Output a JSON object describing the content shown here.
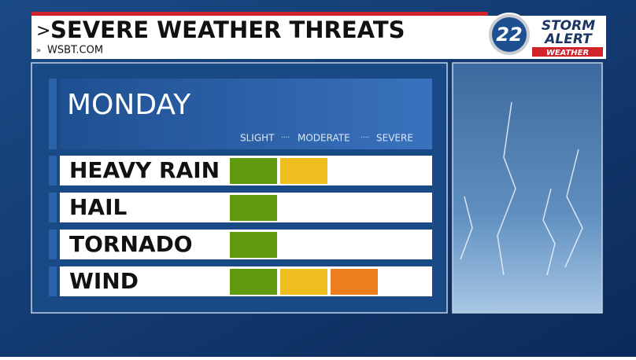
{
  "header": {
    "title": "SEVERE WEATHER THREATS",
    "source": "WSBT.COM"
  },
  "logo": {
    "number": "22",
    "line1": "STORM",
    "line2": "ALERT",
    "line3": "WEATHER"
  },
  "panel": {
    "day": "MONDAY",
    "scale": [
      {
        "label": "SLIGHT",
        "color": "#5f9a0c"
      },
      {
        "label": "MODERATE",
        "color": "#efbe1f"
      },
      {
        "label": "SEVERE",
        "color": "#ee7f1d"
      }
    ],
    "rows": [
      {
        "label": "HEAVY RAIN",
        "level": 2
      },
      {
        "label": "HAIL",
        "level": 1
      },
      {
        "label": "TORNADO",
        "level": 1
      },
      {
        "label": "WIND",
        "level": 3
      }
    ]
  }
}
